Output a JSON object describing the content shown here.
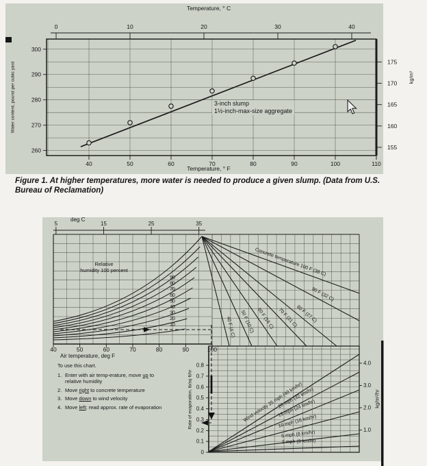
{
  "figure1": {
    "caption_lead": "Figure 1.",
    "caption_rest": " At higher temperatures, more water is needed to produce a given slump. (Data from U.S. Bureau of Reclamation)",
    "annotation_line1": "3-inch slump",
    "annotation_line2": "1½-inch-max-size aggregate"
  },
  "figure2": {
    "instructions": {
      "title": "To use this chart.",
      "steps": [
        {
          "num": "1.",
          "pre": "Enter with air temp-erature, move ",
          "dir": "up",
          "post": " to relative humidity"
        },
        {
          "num": "2.",
          "pre": "Move ",
          "dir": "right",
          "post": " to concrete temperature"
        },
        {
          "num": "3.",
          "pre": "Move ",
          "dir": "down",
          "post": " to wind velocity"
        },
        {
          "num": "4.",
          "pre": "Move ",
          "dir": "left",
          "post": "; read approx. rate of evaporation"
        }
      ]
    }
  },
  "chart_data": [
    {
      "type": "scatter-line",
      "caption": "Figure 1. At higher temperatures, more water is needed to produce a given slump. (Data from U.S. Bureau of Reclamation)",
      "x_label_bottom": "Temperature, ° F",
      "x_label_top": "Temperature, ° C",
      "y_label_left": "Water content, pound per cubic yard",
      "y_label_right": "kg/m³",
      "annotation": "3-inch slump, 1½-inch-max-size aggregate",
      "x_F": [
        40,
        50,
        60,
        70,
        80,
        90,
        100
      ],
      "y_lb_per_cu_yd": [
        263,
        271,
        277.5,
        283.5,
        288.5,
        294.5,
        301
      ],
      "trend_line_F": [
        38,
        105
      ],
      "trend_line_lb": [
        261.5,
        303.5
      ],
      "xlim_F": [
        30,
        110
      ],
      "ylim_lb": [
        258,
        304
      ],
      "x_ticks_F": [
        40,
        50,
        60,
        70,
        80,
        90,
        100,
        110
      ],
      "x_ticks_C": [
        0,
        10,
        20,
        30,
        40
      ],
      "y_ticks_lb": [
        260,
        270,
        280,
        290,
        300
      ],
      "y_ticks_kg_per_m3": [
        155,
        160,
        165,
        170,
        175
      ],
      "grid": true
    },
    {
      "type": "nomograph",
      "air_temperature": {
        "label": "Air temperature, deg F",
        "top_label": "deg C",
        "ticks_F": [
          40,
          50,
          60,
          70,
          80,
          90,
          100
        ],
        "ticks_C": [
          5,
          15,
          25,
          35
        ]
      },
      "relative_humidity": {
        "label_line1": "Relative",
        "label_line2": "humidity 100 percent",
        "curves_percent": [
          100,
          90,
          80,
          70,
          60,
          50,
          40,
          30,
          20,
          10
        ],
        "curve_labels": [
          "90",
          "80",
          "70",
          "60",
          "50",
          "40",
          "30",
          "20",
          "10"
        ]
      },
      "concrete_temperature_lines": [
        "Concrete temperature 100 F (38 C)",
        "90 F (32 C)",
        "80 F (27 C)",
        "70 F (21 C)",
        "60 F (16 C)",
        "50 F (10 C)",
        "40 F (4 C)"
      ],
      "wind_velocity_lines": [
        "Wind velocity 25 mph (40 km/hr)",
        "20 mph (32 km/hr)",
        "15 mph (24 km/hr)",
        "10 mph (16 km/hr)",
        "5 mph (8 km/hr)",
        "2 mph (3 km/hr)"
      ],
      "evaporation_rate": {
        "label": "Rate of evaporation, lb/sq ft/hr",
        "ticks": [
          "0.8",
          "0.7",
          "0.6",
          "0.5",
          "0.4",
          "0.3",
          "0.2",
          "0.1",
          "0"
        ],
        "right_label": "kg/m²/hr",
        "right_ticks": [
          "4.0",
          "3.0",
          "2.0",
          "1.0"
        ]
      }
    }
  ]
}
